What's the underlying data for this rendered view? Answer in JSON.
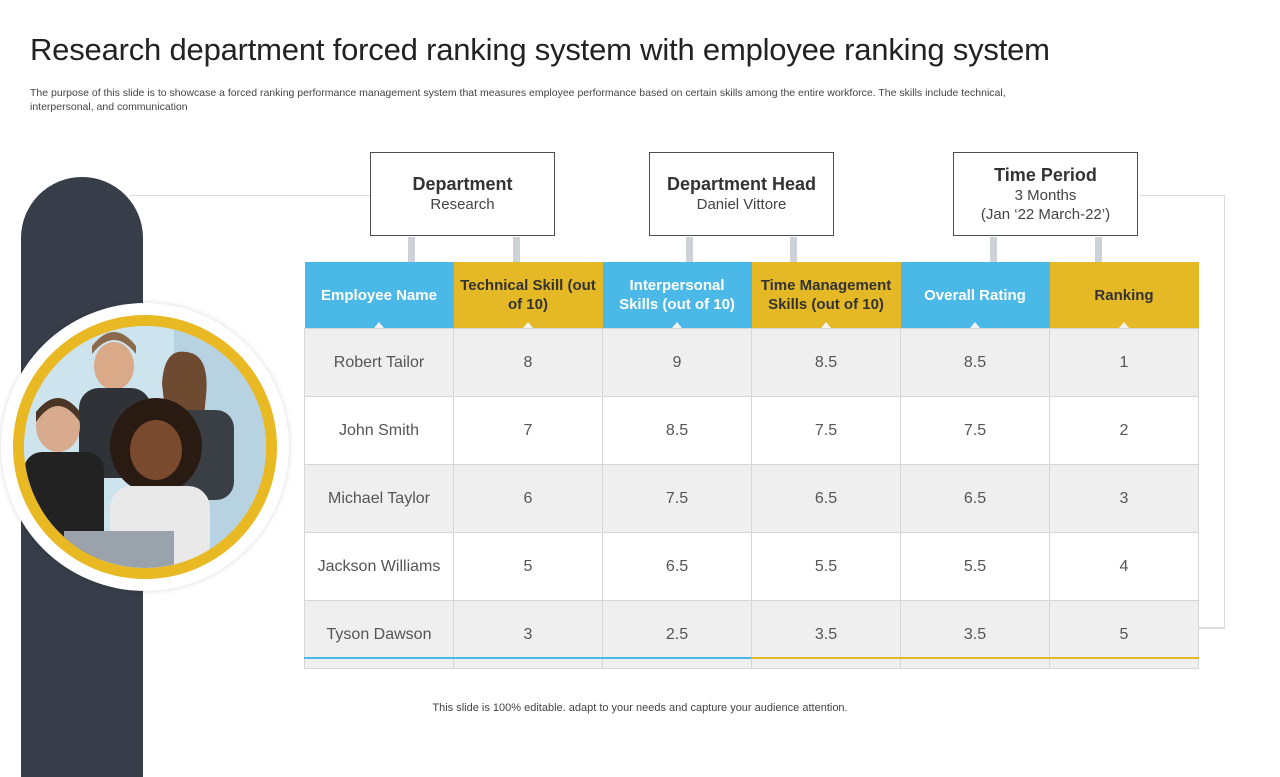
{
  "title": "Research department forced ranking system with employee ranking system",
  "subtitle": "The purpose of this slide is to showcase a forced ranking performance management system that measures employee performance based on certain skills among the entire workforce. The skills include technical, interpersonal, and communication",
  "info": {
    "department": {
      "label": "Department",
      "value": "Research"
    },
    "head": {
      "label": "Department Head",
      "value": "Daniel Vittore"
    },
    "period": {
      "label": "Time Period",
      "value1": "3 Months",
      "value2": "(Jan ‘22 March-22’)"
    }
  },
  "table": {
    "headers": [
      "Employee Name",
      "Technical Skill (out of 10)",
      "Interpersonal Skills (out of 10)",
      "Time Management Skills (out of 10)",
      "Overall Rating",
      "Ranking"
    ],
    "rows": [
      [
        "Robert Tailor",
        "8",
        "9",
        "8.5",
        "8.5",
        "1"
      ],
      [
        "John Smith",
        "7",
        "8.5",
        "7.5",
        "7.5",
        "2"
      ],
      [
        "Michael Taylor",
        "6",
        "7.5",
        "6.5",
        "6.5",
        "3"
      ],
      [
        "Jackson Williams",
        "5",
        "6.5",
        "5.5",
        "5.5",
        "4"
      ],
      [
        "Tyson Dawson",
        "3",
        "2.5",
        "3.5",
        "3.5",
        "5"
      ]
    ]
  },
  "footer": "This slide is 100% editable. adapt to your needs and capture your audience attention.",
  "colors": {
    "blue": "#4bb9e8",
    "gold": "#e5b825",
    "dark": "#373e4a"
  }
}
